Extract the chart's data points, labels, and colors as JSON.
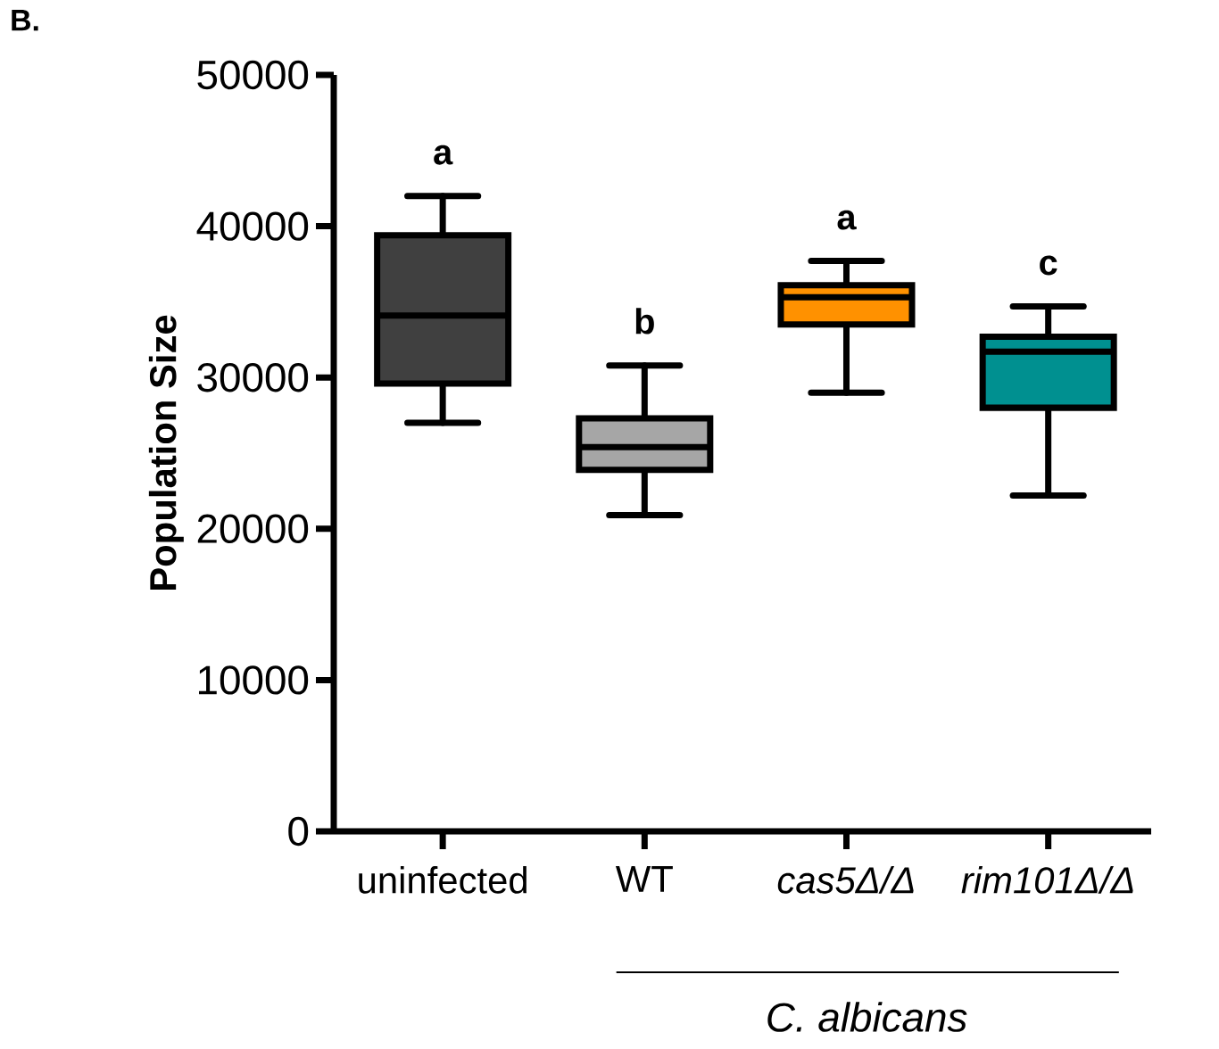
{
  "chart_data": {
    "type": "box",
    "title": "B.",
    "ylabel": "Population Size",
    "categories": [
      "uninfected",
      "WT",
      "*cas5Δ/Δ*",
      "*rim101Δ/Δ*"
    ],
    "colors": [
      "#404040",
      "#a6a6a6",
      "#ff9100",
      "#009090"
    ],
    "boxes": [
      {
        "low": 27000,
        "q1": 29600,
        "median": 34100,
        "q3": 39400,
        "high": 42000
      },
      {
        "low": 20900,
        "q1": 23900,
        "median": 25400,
        "q3": 27300,
        "high": 30800
      },
      {
        "low": 29000,
        "q1": 33500,
        "median": 35300,
        "q3": 36100,
        "high": 37700
      },
      {
        "low": 22200,
        "q1": 28000,
        "median": 31700,
        "q3": 32700,
        "high": 34700
      }
    ],
    "ylim": [
      0,
      50000
    ],
    "yticks": [
      0,
      10000,
      20000,
      30000,
      40000,
      50000
    ],
    "grid": false,
    "annotations": [
      "a",
      "b",
      "a",
      "c",
      "C. albicans"
    ]
  }
}
